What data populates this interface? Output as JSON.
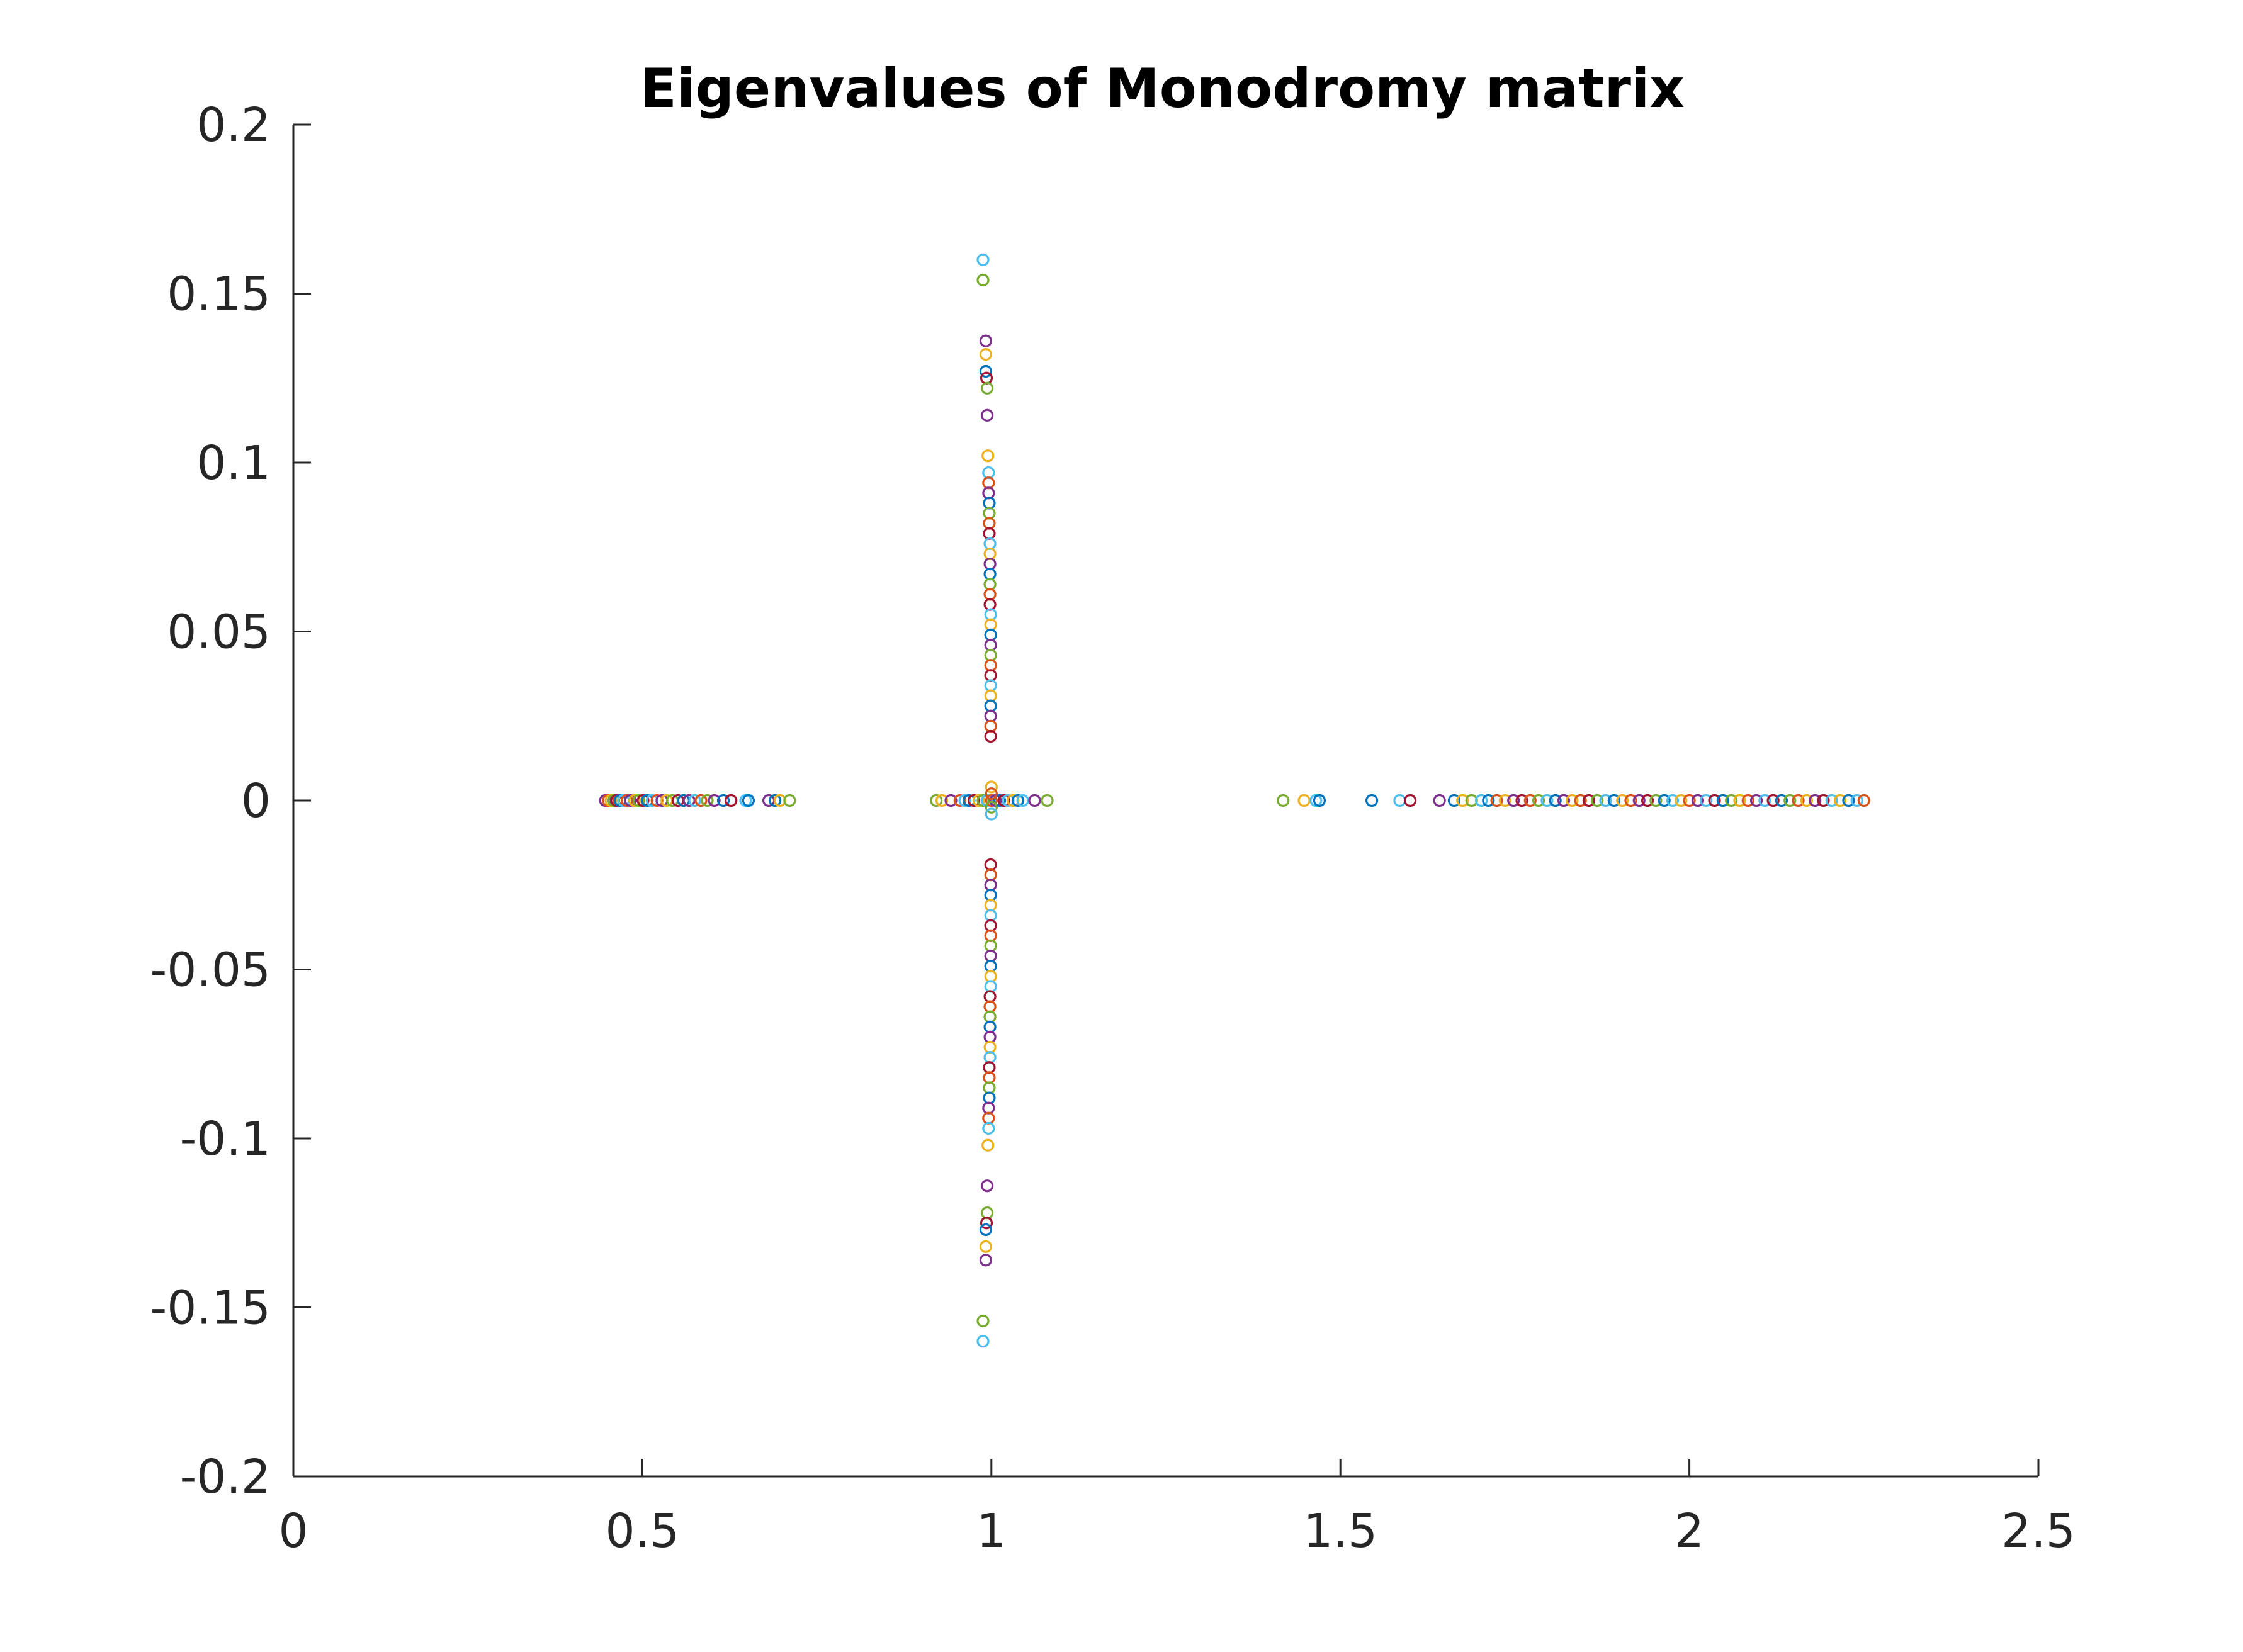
{
  "chart_data": {
    "type": "scatter",
    "title": "Eigenvalues of Monodromy matrix",
    "xlabel": "",
    "ylabel": "",
    "xlim": [
      0,
      2.5
    ],
    "ylim": [
      -0.2,
      0.2
    ],
    "grid": false,
    "legend": "none",
    "marker": "open-circle",
    "xticks": [
      0,
      0.5,
      1,
      1.5,
      2,
      2.5
    ],
    "xtick_labels": [
      "0",
      "0.5",
      "1",
      "1.5",
      "2",
      "2.5"
    ],
    "yticks": [
      0.2,
      0.15,
      0.1,
      0.05,
      0,
      -0.05,
      -0.1,
      -0.15,
      -0.2
    ],
    "ytick_labels": [
      "0.2",
      "0.15",
      "0.1",
      "0.05",
      "0",
      "-0.05",
      "-0.1",
      "-0.15",
      "-0.2"
    ],
    "colors": [
      "#0072BD",
      "#D95319",
      "#EDB120",
      "#7E2F8E",
      "#77AC30",
      "#4DBEEE",
      "#A2142F"
    ],
    "points": [
      {
        "x": 0.447,
        "y": 0,
        "c": 3
      },
      {
        "x": 0.451,
        "y": 0,
        "c": 1
      },
      {
        "x": 0.455,
        "y": 0,
        "c": 2
      },
      {
        "x": 0.459,
        "y": 0,
        "c": 4
      },
      {
        "x": 0.463,
        "y": 0,
        "c": 6
      },
      {
        "x": 0.468,
        "y": 0,
        "c": 0
      },
      {
        "x": 0.473,
        "y": 0,
        "c": 5
      },
      {
        "x": 0.478,
        "y": 0,
        "c": 1
      },
      {
        "x": 0.483,
        "y": 0,
        "c": 3
      },
      {
        "x": 0.489,
        "y": 0,
        "c": 2
      },
      {
        "x": 0.495,
        "y": 0,
        "c": 4
      },
      {
        "x": 0.501,
        "y": 0,
        "c": 6
      },
      {
        "x": 0.507,
        "y": 0,
        "c": 0
      },
      {
        "x": 0.514,
        "y": 0,
        "c": 5
      },
      {
        "x": 0.521,
        "y": 0,
        "c": 1
      },
      {
        "x": 0.528,
        "y": 0,
        "c": 3
      },
      {
        "x": 0.535,
        "y": 0,
        "c": 2
      },
      {
        "x": 0.543,
        "y": 0,
        "c": 4
      },
      {
        "x": 0.551,
        "y": 0,
        "c": 6
      },
      {
        "x": 0.559,
        "y": 0,
        "c": 0
      },
      {
        "x": 0.567,
        "y": 0,
        "c": 3
      },
      {
        "x": 0.575,
        "y": 0,
        "c": 5
      },
      {
        "x": 0.584,
        "y": 0,
        "c": 1
      },
      {
        "x": 0.593,
        "y": 0,
        "c": 4
      },
      {
        "x": 0.603,
        "y": 0,
        "c": 3
      },
      {
        "x": 0.616,
        "y": 0,
        "c": 0
      },
      {
        "x": 0.627,
        "y": 0,
        "c": 6
      },
      {
        "x": 0.648,
        "y": 0,
        "c": 5
      },
      {
        "x": 0.652,
        "y": 0,
        "c": 0
      },
      {
        "x": 0.681,
        "y": 0,
        "c": 3
      },
      {
        "x": 0.69,
        "y": 0,
        "c": 0
      },
      {
        "x": 0.697,
        "y": 0,
        "c": 2
      },
      {
        "x": 0.711,
        "y": 0,
        "c": 4
      },
      {
        "x": 0.921,
        "y": 0,
        "c": 4
      },
      {
        "x": 0.929,
        "y": 0,
        "c": 2
      },
      {
        "x": 0.942,
        "y": 0,
        "c": 3
      },
      {
        "x": 0.955,
        "y": 0,
        "c": 1
      },
      {
        "x": 0.962,
        "y": 0,
        "c": 5
      },
      {
        "x": 0.968,
        "y": 0,
        "c": 0
      },
      {
        "x": 0.975,
        "y": 0,
        "c": 6
      },
      {
        "x": 0.982,
        "y": 0,
        "c": 2
      },
      {
        "x": 0.988,
        "y": 0,
        "c": 4
      },
      {
        "x": 0.994,
        "y": 0,
        "c": 5
      },
      {
        "x": 1.0,
        "y": 0,
        "c": 1
      },
      {
        "x": 1.006,
        "y": 0,
        "c": 3
      },
      {
        "x": 1.012,
        "y": 0,
        "c": 0
      },
      {
        "x": 1.018,
        "y": 0,
        "c": 6
      },
      {
        "x": 1.024,
        "y": 0,
        "c": 5
      },
      {
        "x": 1.031,
        "y": 0,
        "c": 2
      },
      {
        "x": 1.038,
        "y": 0,
        "c": 0
      },
      {
        "x": 1.045,
        "y": 0,
        "c": 5
      },
      {
        "x": 1.062,
        "y": 0,
        "c": 3
      },
      {
        "x": 1.08,
        "y": 0,
        "c": 4
      },
      {
        "x": 1.0,
        "y": 0.004,
        "c": 2
      },
      {
        "x": 1.0,
        "y": 0.002,
        "c": 1
      },
      {
        "x": 1.0,
        "y": -0.002,
        "c": 4
      },
      {
        "x": 1.0,
        "y": -0.004,
        "c": 5
      },
      {
        "x": 0.988,
        "y": 0.16,
        "c": 5
      },
      {
        "x": 0.988,
        "y": 0.154,
        "c": 4
      },
      {
        "x": 0.992,
        "y": 0.136,
        "c": 3
      },
      {
        "x": 0.992,
        "y": 0.132,
        "c": 2
      },
      {
        "x": 0.992,
        "y": 0.127,
        "c": 0
      },
      {
        "x": 0.993,
        "y": 0.125,
        "c": 6
      },
      {
        "x": 0.994,
        "y": 0.122,
        "c": 4
      },
      {
        "x": 0.994,
        "y": 0.114,
        "c": 3
      },
      {
        "x": 0.995,
        "y": 0.102,
        "c": 2
      },
      {
        "x": 0.996,
        "y": 0.097,
        "c": 5
      },
      {
        "x": 0.996,
        "y": 0.094,
        "c": 1
      },
      {
        "x": 0.996,
        "y": 0.091,
        "c": 3
      },
      {
        "x": 0.997,
        "y": 0.088,
        "c": 0
      },
      {
        "x": 0.997,
        "y": 0.085,
        "c": 4
      },
      {
        "x": 0.997,
        "y": 0.082,
        "c": 1
      },
      {
        "x": 0.997,
        "y": 0.079,
        "c": 6
      },
      {
        "x": 0.998,
        "y": 0.076,
        "c": 5
      },
      {
        "x": 0.998,
        "y": 0.073,
        "c": 2
      },
      {
        "x": 0.998,
        "y": 0.07,
        "c": 3
      },
      {
        "x": 0.998,
        "y": 0.067,
        "c": 0
      },
      {
        "x": 0.998,
        "y": 0.064,
        "c": 4
      },
      {
        "x": 0.998,
        "y": 0.061,
        "c": 1
      },
      {
        "x": 0.998,
        "y": 0.058,
        "c": 6
      },
      {
        "x": 0.999,
        "y": 0.055,
        "c": 5
      },
      {
        "x": 0.999,
        "y": 0.052,
        "c": 2
      },
      {
        "x": 0.999,
        "y": 0.049,
        "c": 0
      },
      {
        "x": 0.999,
        "y": 0.046,
        "c": 3
      },
      {
        "x": 0.999,
        "y": 0.043,
        "c": 4
      },
      {
        "x": 0.999,
        "y": 0.04,
        "c": 1
      },
      {
        "x": 0.999,
        "y": 0.037,
        "c": 6
      },
      {
        "x": 0.999,
        "y": 0.034,
        "c": 5
      },
      {
        "x": 0.999,
        "y": 0.031,
        "c": 2
      },
      {
        "x": 0.999,
        "y": 0.028,
        "c": 0
      },
      {
        "x": 0.999,
        "y": 0.025,
        "c": 3
      },
      {
        "x": 0.999,
        "y": 0.022,
        "c": 1
      },
      {
        "x": 0.999,
        "y": 0.019,
        "c": 6
      },
      {
        "x": 0.999,
        "y": -0.019,
        "c": 6
      },
      {
        "x": 0.999,
        "y": -0.022,
        "c": 1
      },
      {
        "x": 0.999,
        "y": -0.025,
        "c": 3
      },
      {
        "x": 0.999,
        "y": -0.028,
        "c": 0
      },
      {
        "x": 0.999,
        "y": -0.031,
        "c": 2
      },
      {
        "x": 0.999,
        "y": -0.034,
        "c": 5
      },
      {
        "x": 0.999,
        "y": -0.037,
        "c": 6
      },
      {
        "x": 0.999,
        "y": -0.04,
        "c": 1
      },
      {
        "x": 0.999,
        "y": -0.043,
        "c": 4
      },
      {
        "x": 0.999,
        "y": -0.046,
        "c": 3
      },
      {
        "x": 0.999,
        "y": -0.049,
        "c": 0
      },
      {
        "x": 0.999,
        "y": -0.052,
        "c": 2
      },
      {
        "x": 0.999,
        "y": -0.055,
        "c": 5
      },
      {
        "x": 0.998,
        "y": -0.058,
        "c": 6
      },
      {
        "x": 0.998,
        "y": -0.061,
        "c": 1
      },
      {
        "x": 0.998,
        "y": -0.064,
        "c": 4
      },
      {
        "x": 0.998,
        "y": -0.067,
        "c": 0
      },
      {
        "x": 0.998,
        "y": -0.07,
        "c": 3
      },
      {
        "x": 0.998,
        "y": -0.073,
        "c": 2
      },
      {
        "x": 0.998,
        "y": -0.076,
        "c": 5
      },
      {
        "x": 0.997,
        "y": -0.079,
        "c": 6
      },
      {
        "x": 0.997,
        "y": -0.082,
        "c": 1
      },
      {
        "x": 0.997,
        "y": -0.085,
        "c": 4
      },
      {
        "x": 0.997,
        "y": -0.088,
        "c": 0
      },
      {
        "x": 0.996,
        "y": -0.091,
        "c": 3
      },
      {
        "x": 0.996,
        "y": -0.094,
        "c": 1
      },
      {
        "x": 0.996,
        "y": -0.097,
        "c": 5
      },
      {
        "x": 0.995,
        "y": -0.102,
        "c": 2
      },
      {
        "x": 0.994,
        "y": -0.114,
        "c": 3
      },
      {
        "x": 0.994,
        "y": -0.122,
        "c": 4
      },
      {
        "x": 0.993,
        "y": -0.125,
        "c": 6
      },
      {
        "x": 0.992,
        "y": -0.127,
        "c": 0
      },
      {
        "x": 0.992,
        "y": -0.132,
        "c": 2
      },
      {
        "x": 0.992,
        "y": -0.136,
        "c": 3
      },
      {
        "x": 0.988,
        "y": -0.154,
        "c": 4
      },
      {
        "x": 0.988,
        "y": -0.16,
        "c": 5
      },
      {
        "x": 1.418,
        "y": 0,
        "c": 4
      },
      {
        "x": 1.448,
        "y": 0,
        "c": 2
      },
      {
        "x": 1.465,
        "y": 0,
        "c": 5
      },
      {
        "x": 1.47,
        "y": 0,
        "c": 0
      },
      {
        "x": 1.545,
        "y": 0,
        "c": 0
      },
      {
        "x": 1.585,
        "y": 0,
        "c": 5
      },
      {
        "x": 1.6,
        "y": 0,
        "c": 6
      },
      {
        "x": 1.642,
        "y": 0,
        "c": 3
      },
      {
        "x": 1.663,
        "y": 0,
        "c": 0
      },
      {
        "x": 1.675,
        "y": 0,
        "c": 2
      },
      {
        "x": 1.688,
        "y": 0,
        "c": 4
      },
      {
        "x": 1.702,
        "y": 0,
        "c": 5
      },
      {
        "x": 1.712,
        "y": 0,
        "c": 0
      },
      {
        "x": 1.724,
        "y": 0,
        "c": 1
      },
      {
        "x": 1.736,
        "y": 0,
        "c": 2
      },
      {
        "x": 1.748,
        "y": 0,
        "c": 3
      },
      {
        "x": 1.76,
        "y": 0,
        "c": 6
      },
      {
        "x": 1.772,
        "y": 0,
        "c": 1
      },
      {
        "x": 1.784,
        "y": 0,
        "c": 4
      },
      {
        "x": 1.796,
        "y": 0,
        "c": 5
      },
      {
        "x": 1.808,
        "y": 0,
        "c": 0
      },
      {
        "x": 1.82,
        "y": 0,
        "c": 3
      },
      {
        "x": 1.832,
        "y": 0,
        "c": 2
      },
      {
        "x": 1.844,
        "y": 0,
        "c": 1
      },
      {
        "x": 1.856,
        "y": 0,
        "c": 6
      },
      {
        "x": 1.868,
        "y": 0,
        "c": 4
      },
      {
        "x": 1.88,
        "y": 0,
        "c": 5
      },
      {
        "x": 1.892,
        "y": 0,
        "c": 0
      },
      {
        "x": 1.904,
        "y": 0,
        "c": 2
      },
      {
        "x": 1.916,
        "y": 0,
        "c": 1
      },
      {
        "x": 1.928,
        "y": 0,
        "c": 3
      },
      {
        "x": 1.94,
        "y": 0,
        "c": 6
      },
      {
        "x": 1.952,
        "y": 0,
        "c": 4
      },
      {
        "x": 1.964,
        "y": 0,
        "c": 0
      },
      {
        "x": 1.976,
        "y": 0,
        "c": 5
      },
      {
        "x": 1.988,
        "y": 0,
        "c": 2
      },
      {
        "x": 2.0,
        "y": 0,
        "c": 1
      },
      {
        "x": 2.012,
        "y": 0,
        "c": 3
      },
      {
        "x": 2.024,
        "y": 0,
        "c": 5
      },
      {
        "x": 2.036,
        "y": 0,
        "c": 6
      },
      {
        "x": 2.048,
        "y": 0,
        "c": 0
      },
      {
        "x": 2.06,
        "y": 0,
        "c": 4
      },
      {
        "x": 2.072,
        "y": 0,
        "c": 2
      },
      {
        "x": 2.084,
        "y": 0,
        "c": 1
      },
      {
        "x": 2.096,
        "y": 0,
        "c": 3
      },
      {
        "x": 2.108,
        "y": 0,
        "c": 5
      },
      {
        "x": 2.12,
        "y": 0,
        "c": 6
      },
      {
        "x": 2.132,
        "y": 0,
        "c": 0
      },
      {
        "x": 2.144,
        "y": 0,
        "c": 4
      },
      {
        "x": 2.156,
        "y": 0,
        "c": 1
      },
      {
        "x": 2.168,
        "y": 0,
        "c": 2
      },
      {
        "x": 2.18,
        "y": 0,
        "c": 3
      },
      {
        "x": 2.192,
        "y": 0,
        "c": 6
      },
      {
        "x": 2.204,
        "y": 0,
        "c": 5
      },
      {
        "x": 2.216,
        "y": 0,
        "c": 2
      },
      {
        "x": 2.228,
        "y": 0,
        "c": 0
      },
      {
        "x": 2.24,
        "y": 0,
        "c": 5
      },
      {
        "x": 2.25,
        "y": 0,
        "c": 1
      }
    ]
  }
}
